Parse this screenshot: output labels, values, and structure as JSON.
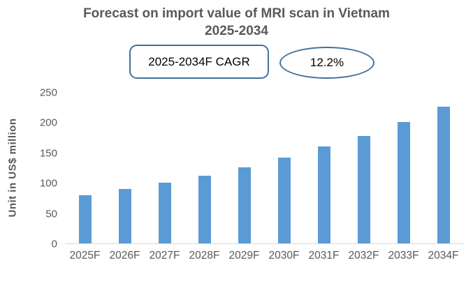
{
  "title": {
    "line1": "Forecast on import value of MRI scan in Vietnam",
    "line2": "2025-2034"
  },
  "cagr": {
    "box_label": "2025-2034F CAGR",
    "value": "12.2%"
  },
  "chart_data": {
    "type": "bar",
    "title": "Forecast on import value of MRI scan in Vietnam 2025-2034",
    "categories": [
      "2025F",
      "2026F",
      "2027F",
      "2028F",
      "2029F",
      "2030F",
      "2031F",
      "2032F",
      "2033F",
      "2034F"
    ],
    "values": [
      80,
      90,
      100,
      112,
      126,
      142,
      160,
      178,
      200,
      226
    ],
    "xlabel": "",
    "ylabel": "Unit in US$ million",
    "ylim": [
      0,
      250
    ],
    "yticks": [
      0,
      50,
      100,
      150,
      200,
      250
    ],
    "grid": false,
    "legend": false,
    "bar_color": "#5B9BD5"
  },
  "colors": {
    "bar": "#5B9BD5",
    "title_text": "#595959",
    "axis_text": "#595959",
    "shape_border": "#41719C",
    "baseline": "#D9D9D9"
  }
}
